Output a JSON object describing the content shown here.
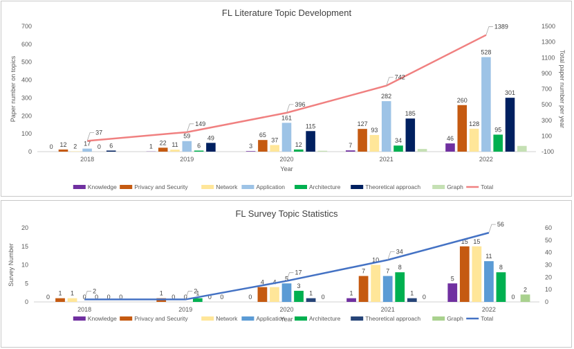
{
  "chart_data": [
    {
      "type": "bar",
      "title": "FL Literature Topic Development",
      "xlabel": "Year",
      "ylabel": "Paper number on topics",
      "y2label": "Total paper number per year",
      "ylim": [
        0,
        700
      ],
      "yticks": [
        "0",
        "100",
        "200",
        "300",
        "400",
        "500",
        "600",
        "700"
      ],
      "y2lim": [
        -100,
        1500
      ],
      "y2ticks": [
        "-100",
        "100",
        "300",
        "500",
        "700",
        "900",
        "1100",
        "1300",
        "1500"
      ],
      "categories": [
        "2018",
        "2019",
        "2020",
        "2021",
        "2022"
      ],
      "series": [
        {
          "name": "Knowledge",
          "color": "#7030a0",
          "values": [
            0,
            1,
            3,
            7,
            46
          ],
          "labels": [
            "0",
            "1",
            "3",
            "7",
            "46"
          ]
        },
        {
          "name": "Privacy and Security",
          "color": "#c55a11",
          "values": [
            12,
            22,
            65,
            127,
            260
          ],
          "labels": [
            "12",
            "22",
            "65",
            "127",
            "260"
          ]
        },
        {
          "name": "Network",
          "color": "#ffe699",
          "values": [
            2,
            11,
            37,
            93,
            128
          ],
          "labels": [
            "2",
            "11",
            "37",
            "93",
            "128"
          ]
        },
        {
          "name": "Application",
          "color": "#9dc3e6",
          "values": [
            17,
            59,
            161,
            282,
            528
          ],
          "labels": [
            "17",
            "59",
            "161",
            "282",
            "528"
          ]
        },
        {
          "name": "Architecture",
          "color": "#00b050",
          "values": [
            0,
            6,
            12,
            34,
            95
          ],
          "labels": [
            "0",
            "6",
            "12",
            "34",
            "95"
          ]
        },
        {
          "name": "Theoretical approach",
          "color": "#002060",
          "values": [
            6,
            49,
            115,
            185,
            301
          ],
          "labels": [
            "6",
            "49",
            "115",
            "185",
            "301"
          ]
        },
        {
          "name": "Graph",
          "color": "#c5e0b4",
          "values": [
            0,
            0,
            5,
            15,
            32
          ],
          "labels": []
        }
      ],
      "line": {
        "name": "Total",
        "color": "#f08080",
        "values": [
          37,
          149,
          396,
          742,
          1389
        ],
        "labels": [
          "37",
          "149",
          "396",
          "742",
          "1389"
        ]
      },
      "legend_position": "bottom"
    },
    {
      "type": "bar",
      "title": "FL Survey Topic Statistics",
      "xlabel": "Year",
      "ylabel": "Survey Number",
      "y2label": "",
      "ylim": [
        0,
        20
      ],
      "yticks": [
        "0",
        "5",
        "10",
        "15",
        "20"
      ],
      "y2lim": [
        0,
        60
      ],
      "y2ticks": [
        "0",
        "10",
        "20",
        "30",
        "40",
        "50",
        "60"
      ],
      "categories": [
        "2018",
        "2019",
        "2020",
        "2021",
        "2022"
      ],
      "series": [
        {
          "name": "Knowledge",
          "color": "#7030a0",
          "values": [
            0,
            0,
            0,
            1,
            5
          ],
          "labels": [
            "0",
            "",
            "0",
            "1",
            "5"
          ]
        },
        {
          "name": "Privacy and Security",
          "color": "#c55a11",
          "values": [
            1,
            1,
            4,
            7,
            15
          ],
          "labels": [
            "1",
            "1",
            "4",
            "7",
            "15"
          ]
        },
        {
          "name": "Network",
          "color": "#ffe699",
          "values": [
            1,
            0,
            4,
            10,
            15
          ],
          "labels": [
            "1",
            "0",
            "4",
            "10",
            "15"
          ]
        },
        {
          "name": "Application",
          "color": "#5b9bd5",
          "values": [
            0,
            0,
            5,
            7,
            11
          ],
          "labels": [
            "0",
            "0",
            "5",
            "7",
            "11"
          ]
        },
        {
          "name": "Architecture",
          "color": "#00b050",
          "values": [
            0,
            1,
            3,
            8,
            8
          ],
          "labels": [
            "0",
            "1",
            "3",
            "8",
            "8"
          ]
        },
        {
          "name": "Theoretical approach",
          "color": "#264478",
          "values": [
            0,
            0,
            1,
            1,
            0
          ],
          "labels": [
            "0",
            "0",
            "1",
            "1",
            "0"
          ]
        },
        {
          "name": "Graph",
          "color": "#a9d18e",
          "values": [
            0,
            0,
            0,
            0,
            2
          ],
          "labels": [
            "0",
            "0",
            "0",
            "0",
            "2"
          ]
        }
      ],
      "line": {
        "name": "Total",
        "color": "#4472c4",
        "values": [
          2,
          2,
          17,
          34,
          56
        ],
        "labels": [
          "2",
          "2",
          "17",
          "34",
          "56"
        ]
      },
      "legend_position": "bottom"
    }
  ]
}
